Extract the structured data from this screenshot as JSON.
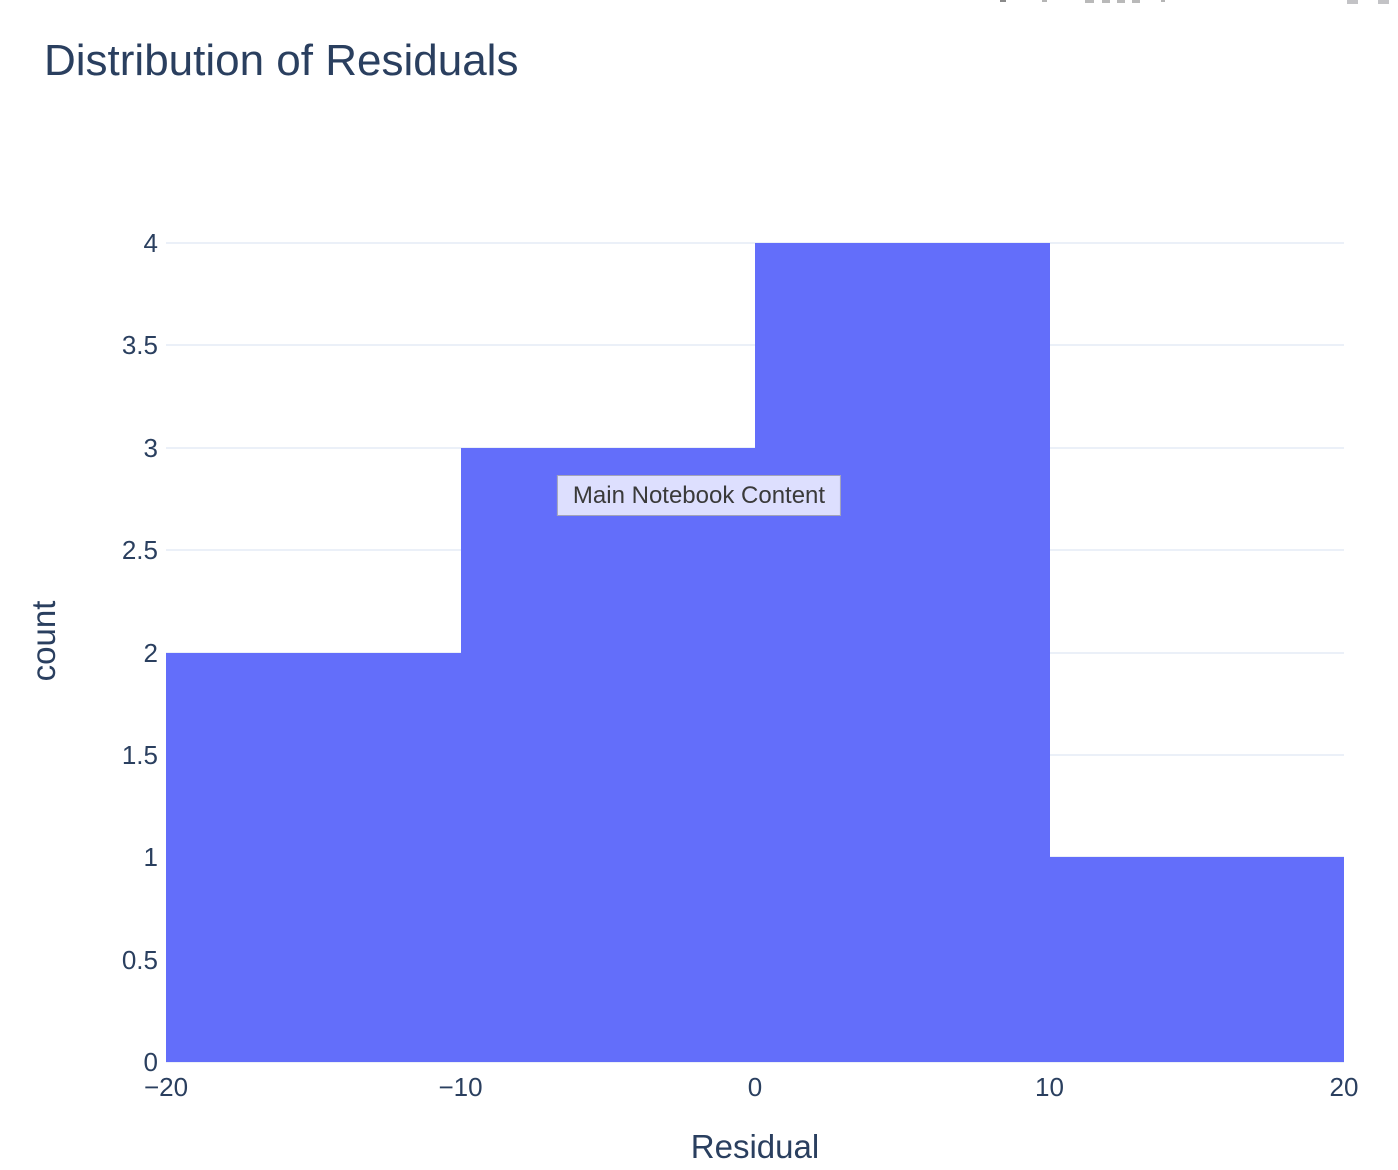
{
  "page": {
    "background": "#ffffff"
  },
  "overlay": {
    "label": "Main Notebook Content"
  },
  "toolbar": {
    "description": "partially cut-off icon row at top edge",
    "fragment_icons": [
      "edit-icon-fragment",
      "modebar-icon-fragment",
      "zoom-icon-fragment",
      "pan-icon-fragment",
      "select-icon-fragment",
      "lasso-icon-fragment",
      "reset-icon-fragment",
      "window-icon-fragment",
      "window-icon-fragment"
    ]
  },
  "chart_data": {
    "type": "bar",
    "subtype": "histogram",
    "title": "Distribution of Residuals",
    "xlabel": "Residual",
    "ylabel": "count",
    "xlim": [
      -20,
      20
    ],
    "ylim": [
      0,
      4
    ],
    "grid": true,
    "legend": false,
    "bins": [
      {
        "x0": -20,
        "x1": -10,
        "count": 2
      },
      {
        "x0": -10,
        "x1": 0,
        "count": 3
      },
      {
        "x0": 0,
        "x1": 10,
        "count": 4
      },
      {
        "x0": 10,
        "x1": 20,
        "count": 1
      }
    ],
    "x_ticks": {
      "values": [
        -20,
        -10,
        0,
        10,
        20
      ],
      "labels": [
        "−20",
        "−10",
        "0",
        "10",
        "20"
      ]
    },
    "y_ticks": {
      "values": [
        0,
        0.5,
        1,
        1.5,
        2,
        2.5,
        3,
        3.5,
        4
      ],
      "labels": [
        "0",
        "0.5",
        "1",
        "1.5",
        "2",
        "2.5",
        "3",
        "3.5",
        "4"
      ]
    },
    "colors": {
      "bar": "#636efa",
      "grid": "#ebf0f8",
      "text": "#2a3f5f",
      "title": "#2a3f5f"
    }
  }
}
